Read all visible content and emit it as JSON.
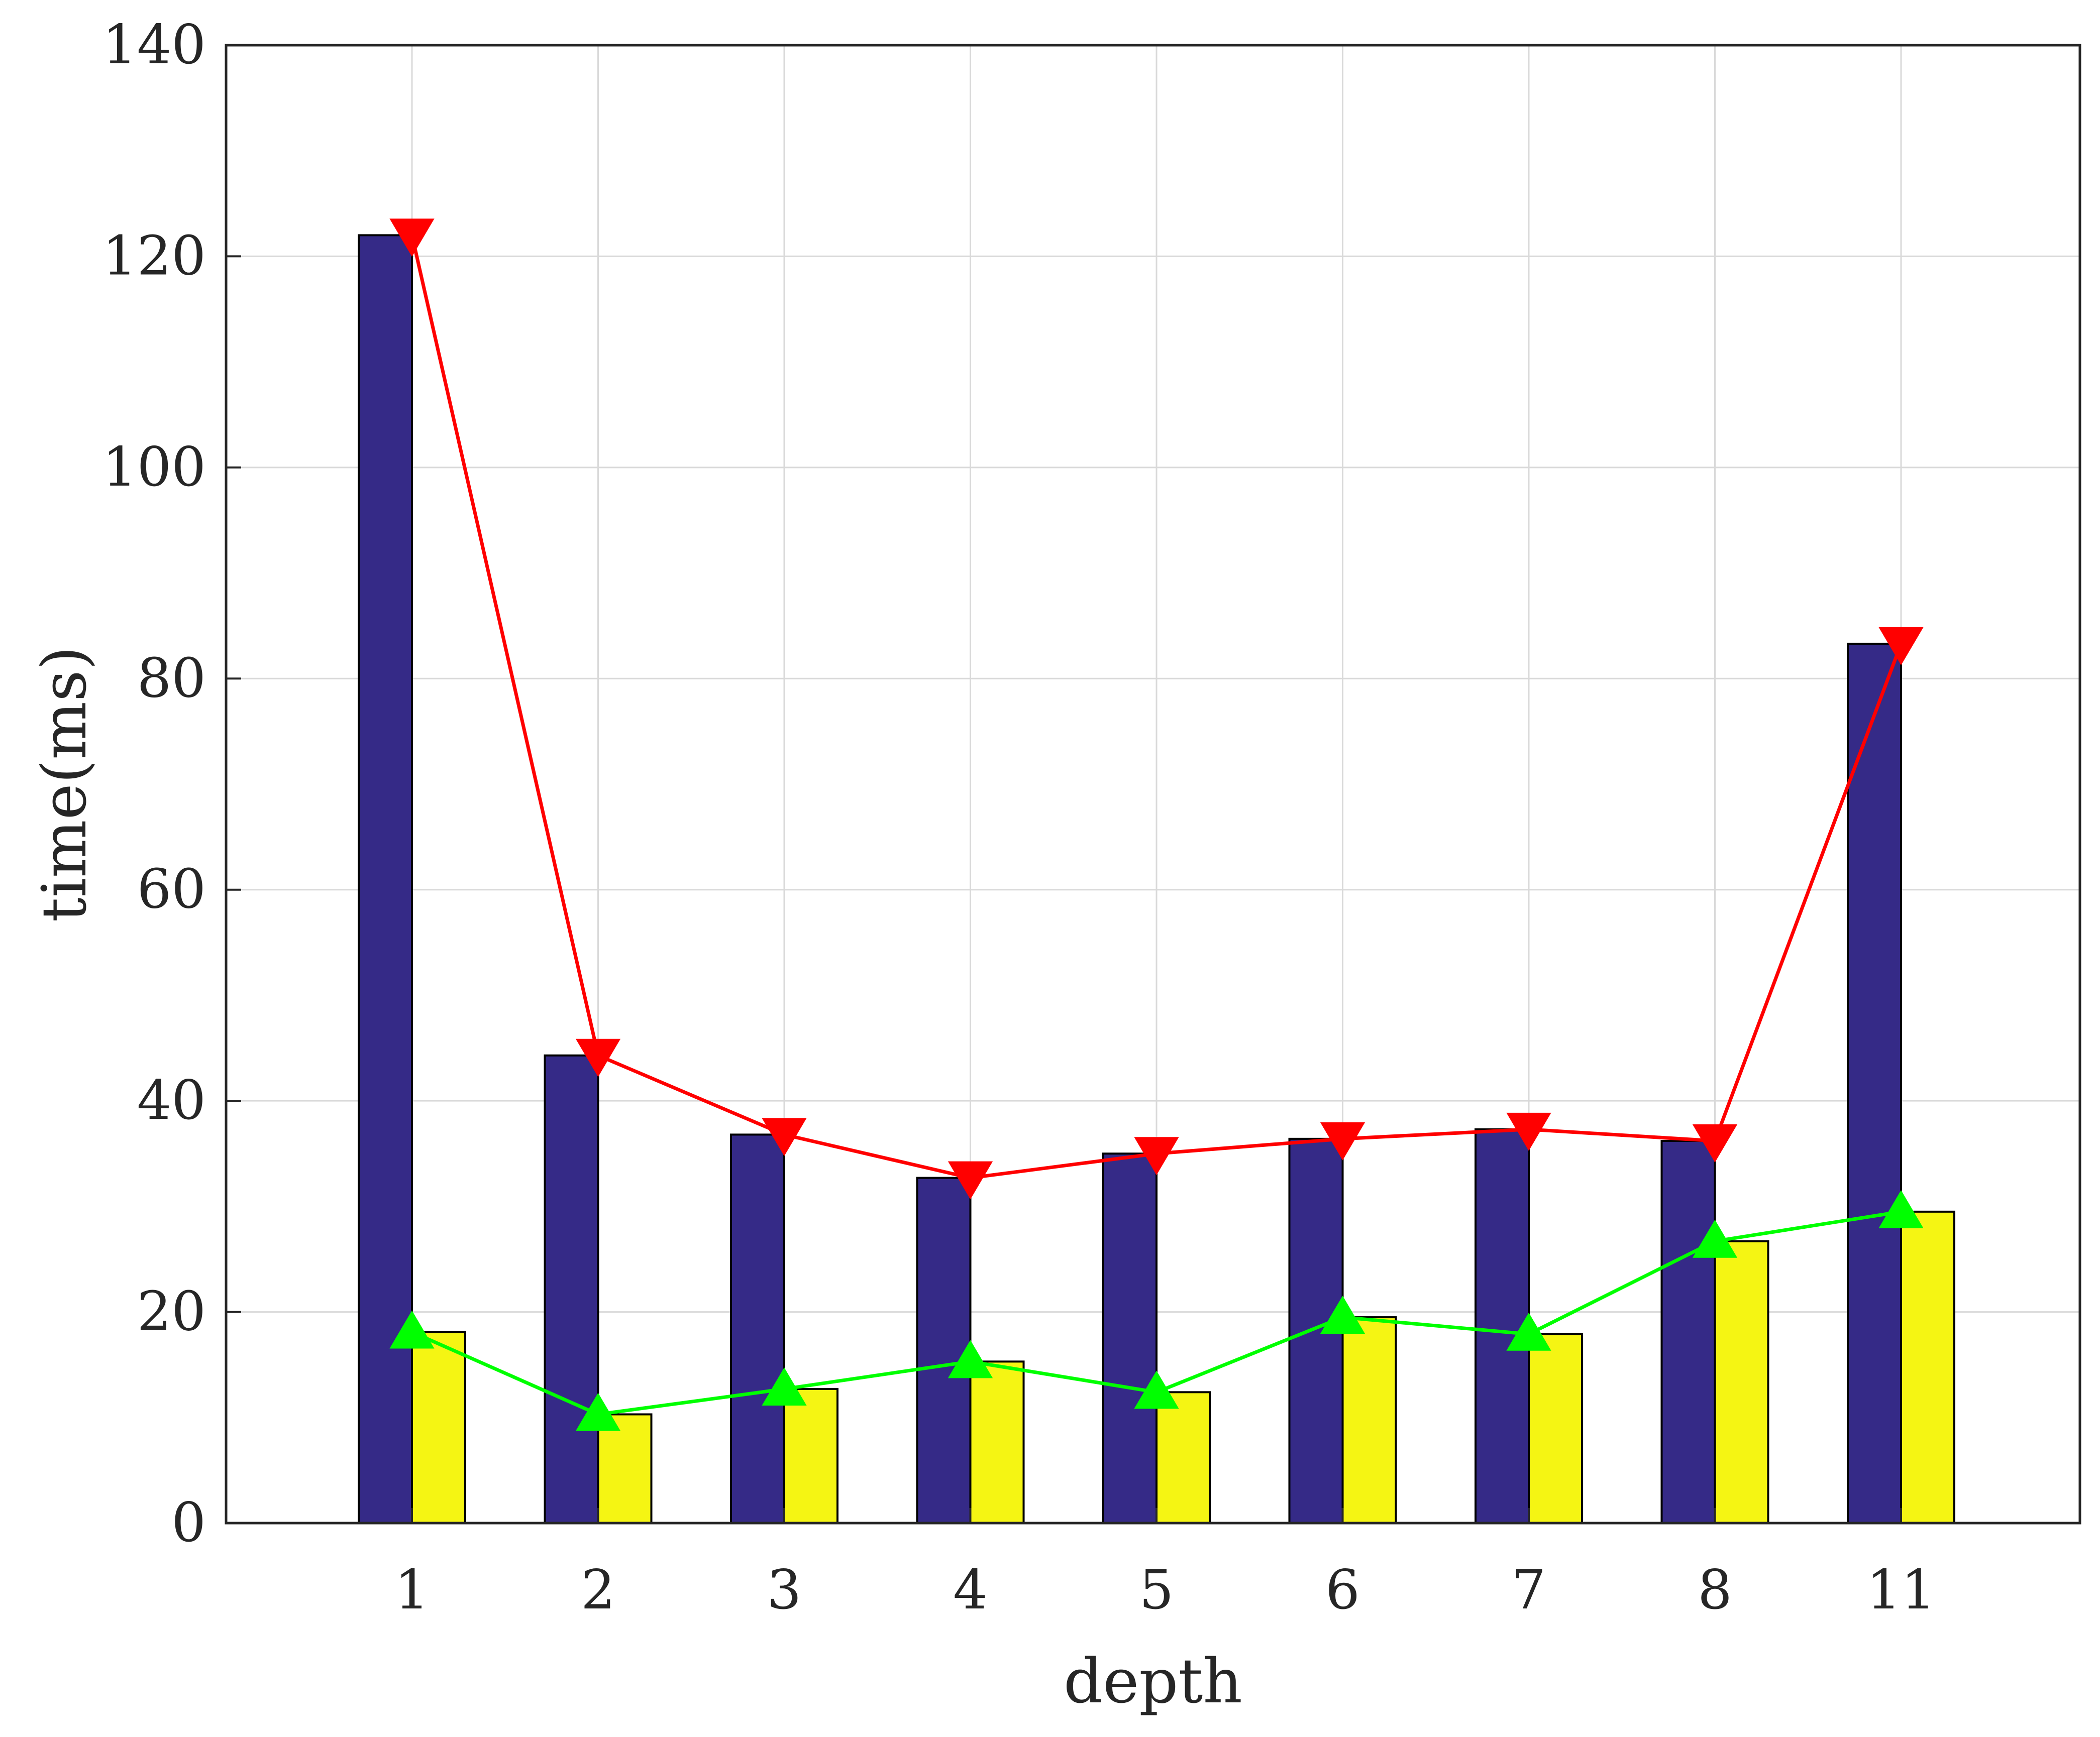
{
  "chart_data": {
    "type": "bar",
    "title": "",
    "xlabel": "depth",
    "ylabel": "time(ms)",
    "categories": [
      "1",
      "2",
      "3",
      "4",
      "5",
      "6",
      "7",
      "8",
      "11"
    ],
    "ylim": [
      0,
      140
    ],
    "yticks": [
      0,
      20,
      40,
      60,
      80,
      100,
      120,
      140
    ],
    "grid": true,
    "bars": [
      {
        "name": "series-1-bars",
        "color": "#352a87",
        "values": [
          122,
          44.3,
          36.8,
          32.7,
          35.0,
          36.4,
          37.3,
          36.2,
          83.3
        ]
      },
      {
        "name": "series-2-bars",
        "color": "#f5f513",
        "values": [
          18.1,
          10.3,
          12.7,
          15.3,
          12.4,
          19.5,
          17.9,
          26.7,
          29.5
        ]
      }
    ],
    "lines": [
      {
        "name": "series-1-line",
        "color": "#ff0000",
        "marker": "triangle-down",
        "values": [
          122,
          44.3,
          36.8,
          32.7,
          35.0,
          36.4,
          37.3,
          36.2,
          83.3
        ]
      },
      {
        "name": "series-2-line",
        "color": "#00ff00",
        "marker": "triangle-up",
        "values": [
          18.1,
          10.3,
          12.7,
          15.3,
          12.4,
          19.5,
          17.9,
          26.7,
          29.5
        ]
      }
    ]
  }
}
